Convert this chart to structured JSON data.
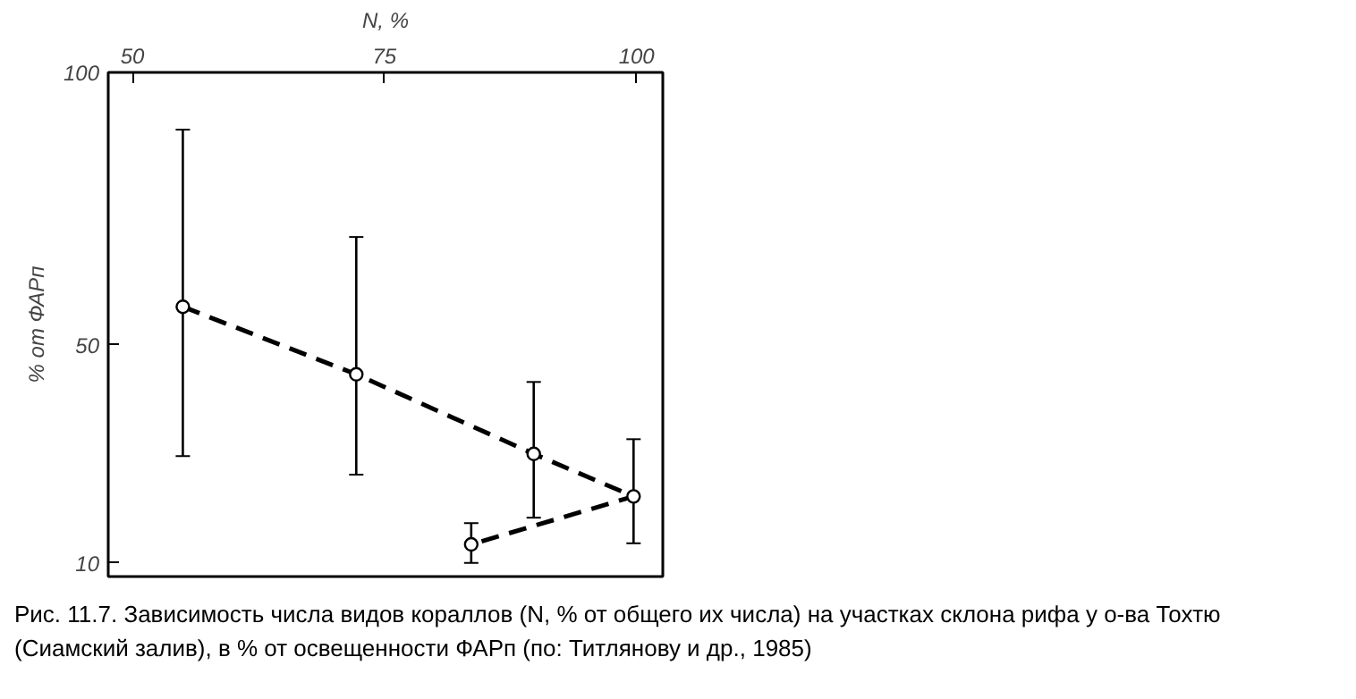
{
  "chart_data": {
    "type": "line",
    "xlabel": "N, %",
    "ylabel": "% от ФАРп",
    "x": [
      55,
      72.2,
      89.8,
      99.7,
      83.6
    ],
    "series": [
      {
        "color": "#000000",
        "values": [
          57,
          44.6,
          30,
          22.2,
          13.4
        ],
        "errors": [
          [
            29.6,
            89.5
          ],
          [
            26.2,
            69.8
          ],
          [
            18.3,
            43.2
          ],
          [
            13.6,
            32.7
          ],
          [
            10,
            17.3
          ]
        ]
      }
    ],
    "xlim": [
      47.6,
      102.6
    ],
    "xticks": [
      50,
      75,
      100
    ],
    "ylim": [
      7.5,
      100
    ],
    "yticks": [
      10,
      50,
      100
    ],
    "grid": false,
    "marker": "circle",
    "line_style": "dashed",
    "annotations": [
      "Рис. 11.7. Зависимость числа видов кораллов (N, % от общего их числа) на участках склона рифа у о-ва Тохтю (Сиамский залив), в % от освещенности ФАРп (по: Титлянову и др., 1985)"
    ]
  }
}
